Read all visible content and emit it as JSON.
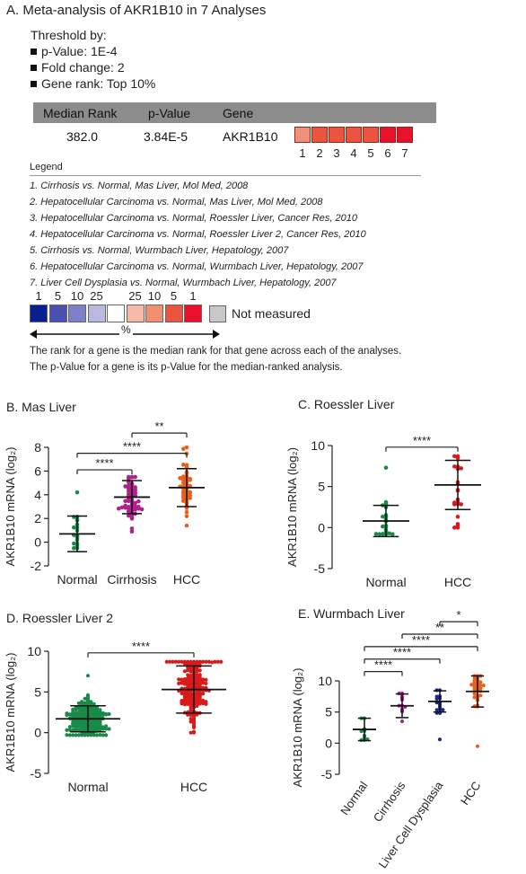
{
  "title": "A. Meta-analysis of AKR1B10 in 7 Analyses",
  "threshold": {
    "heading": "Threshold by:",
    "items": [
      "p-Value: 1E-4",
      "Fold change: 2",
      "Gene rank: Top 10%"
    ]
  },
  "table": {
    "headers": [
      "Median Rank",
      "p-Value",
      "Gene"
    ],
    "row": {
      "median_rank": "382.0",
      "p_value": "3.84E-5",
      "gene": "AKR1B10"
    },
    "rank_cells": [
      {
        "label": "1",
        "color": "#f0907a"
      },
      {
        "label": "2",
        "color": "#ec5440"
      },
      {
        "label": "3",
        "color": "#ec5440"
      },
      {
        "label": "4",
        "color": "#ec5440"
      },
      {
        "label": "5",
        "color": "#ec5440"
      },
      {
        "label": "6",
        "color": "#e8102a"
      },
      {
        "label": "7",
        "color": "#e8102a"
      }
    ]
  },
  "legend": {
    "heading": "Legend",
    "analyses": [
      "1. Cirrhosis vs. Normal, Mas Liver, Mol Med, 2008",
      "2. Hepatocellular Carcinoma vs. Normal, Mas Liver, Mol Med, 2008",
      "3. Hepatocellular Carcinoma vs. Normal, Roessler Liver, Cancer Res, 2010",
      "4. Hepatocellular Carcinoma vs. Normal, Roessler Liver 2, Cancer Res, 2010",
      "5. Cirrhosis vs. Normal, Wurmbach Liver, Hepatology, 2007",
      "6. Hepatocellular Carcinoma vs. Normal, Wurmbach Liver, Hepatology, 2007",
      "7. Liver Cell Dysplasia vs. Normal, Wurmbach Liver, Hepatology, 2007"
    ],
    "scale": [
      {
        "label": "1",
        "color": "#0a1f8f"
      },
      {
        "label": "5",
        "color": "#4a4fb0"
      },
      {
        "label": "10",
        "color": "#7d7fc8"
      },
      {
        "label": "25",
        "color": "#b8b8e0"
      },
      {
        "label": "",
        "color": "#ffffff"
      },
      {
        "label": "25",
        "color": "#f6b8a8"
      },
      {
        "label": "10",
        "color": "#f09070"
      },
      {
        "label": "5",
        "color": "#ec5440"
      },
      {
        "label": "1",
        "color": "#e8102a"
      }
    ],
    "scale_unit": "%",
    "not_measured": "Not measured",
    "not_measured_color": "#c8c8c8",
    "notes": [
      "The rank for a gene is the median rank for that gene across each of the analyses.",
      "The p-Value for a gene is its p-Value for the median-ranked analysis."
    ]
  },
  "chart_data": [
    {
      "panel": "B. Mas Liver",
      "type": "scatter",
      "ylabel": "AKR1B10 mRNA (log₂)",
      "ylim": [
        -2,
        8
      ],
      "yticks": [
        -2,
        0,
        2,
        4,
        6,
        8
      ],
      "groups": [
        {
          "name": "Normal",
          "color": "#1a8a4a",
          "n": 19,
          "mean": 0.7,
          "sd": 1.5,
          "min": -0.5,
          "max": 4.2
        },
        {
          "name": "Cirrhosis",
          "color": "#b0208a",
          "n": 58,
          "mean": 3.8,
          "sd": 1.4,
          "min": 0.9,
          "max": 5.5
        },
        {
          "name": "HCC",
          "color": "#e8601a",
          "n": 47,
          "mean": 4.6,
          "sd": 1.6,
          "min": 1.4,
          "max": 8.0
        }
      ],
      "significance": [
        {
          "from": "Normal",
          "to": "Cirrhosis",
          "label": "****",
          "y": 6.1
        },
        {
          "from": "Normal",
          "to": "HCC",
          "label": "****",
          "y": 7.5
        },
        {
          "from": "Cirrhosis",
          "to": "HCC",
          "label": "**",
          "y": 9.2
        }
      ]
    },
    {
      "panel": "C. Roessler Liver",
      "type": "scatter",
      "ylabel": "AKR1B10 mRNA (log₂)",
      "ylim": [
        -5,
        10
      ],
      "yticks": [
        -5,
        0,
        5,
        10
      ],
      "groups": [
        {
          "name": "Normal",
          "color": "#1a8a4a",
          "n": 21,
          "mean": 0.8,
          "sd": 1.9,
          "min": -0.8,
          "max": 7.3
        },
        {
          "name": "HCC",
          "color": "#d81a1a",
          "n": 22,
          "mean": 5.2,
          "sd": 3.0,
          "min": 0.0,
          "max": 8.7
        }
      ],
      "significance": [
        {
          "from": "Normal",
          "to": "HCC",
          "label": "****",
          "y": 9.8
        }
      ]
    },
    {
      "panel": "D. Roessler Liver 2",
      "type": "scatter",
      "ylabel": "AKR1B10 mRNA (log₂)",
      "ylim": [
        -5,
        10
      ],
      "yticks": [
        -5,
        0,
        5,
        10
      ],
      "groups": [
        {
          "name": "Normal",
          "color": "#1a8a4a",
          "n": 220,
          "mean": 1.7,
          "sd": 1.6,
          "min": -0.3,
          "max": 7.0
        },
        {
          "name": "HCC",
          "color": "#d81a1a",
          "n": 225,
          "mean": 5.3,
          "sd": 2.9,
          "min": 0.0,
          "max": 8.7
        }
      ],
      "significance": [
        {
          "from": "Normal",
          "to": "HCC",
          "label": "****",
          "y": 9.8
        }
      ]
    },
    {
      "panel": "E. Wurmbach Liver",
      "type": "scatter",
      "ylabel": "AKR1B10 mRNA (log₂)",
      "ylim": [
        -5,
        10
      ],
      "yticks": [
        -5,
        0,
        5,
        10
      ],
      "groups": [
        {
          "name": "Normal",
          "color": "#1a8a4a",
          "n": 10,
          "mean": 2.2,
          "sd": 1.8,
          "min": 0.5,
          "max": 4.0
        },
        {
          "name": "Cirrhosis",
          "color": "#b0208a",
          "n": 13,
          "mean": 6.0,
          "sd": 1.9,
          "min": 3.5,
          "max": 8.0
        },
        {
          "name": "Liver Cell Dysplasia",
          "color": "#1a2a8a",
          "n": 17,
          "mean": 6.7,
          "sd": 1.7,
          "min": 0.6,
          "max": 8.5
        },
        {
          "name": "HCC",
          "color": "#e8601a",
          "n": 35,
          "mean": 8.3,
          "sd": 2.5,
          "min": -0.5,
          "max": 10.8
        }
      ],
      "significance": [
        {
          "from": "Normal",
          "to": "Cirrhosis",
          "label": "****",
          "y": 11.5
        },
        {
          "from": "Normal",
          "to": "Liver Cell Dysplasia",
          "label": "****",
          "y": 13.5
        },
        {
          "from": "Normal",
          "to": "HCC",
          "label": "****",
          "y": 15.5
        },
        {
          "from": "Cirrhosis",
          "to": "HCC",
          "label": "**",
          "y": 17.5
        },
        {
          "from": "Liver Cell Dysplasia",
          "to": "HCC",
          "label": "*",
          "y": 19.5
        }
      ]
    }
  ]
}
